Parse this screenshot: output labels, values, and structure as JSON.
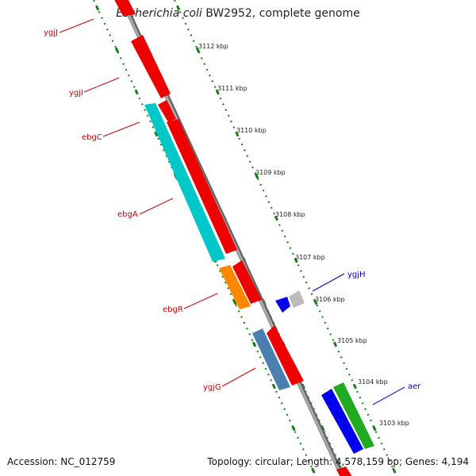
{
  "title": {
    "organism": "Escherichia coli",
    "strain_rest": "BW2952, complete genome"
  },
  "footer": {
    "accession": "Accession: NC_012759",
    "topology": "Topology: circular; Length: 4,578,159 bp; Genes: 4,194"
  },
  "scale": {
    "ticks": [
      "3112 kbp",
      "3111 kbp",
      "3110 kbp",
      "3109 kbp",
      "3108 kbp",
      "3107 kbp",
      "3106 kbp",
      "3105 kbp",
      "3104 kbp",
      "3103 kbp"
    ]
  },
  "genes": [
    {
      "name": "ygjJ",
      "strand": "forward",
      "color": "#ff0000",
      "label_color": "#cc0000"
    },
    {
      "name": "ygjI",
      "strand": "forward",
      "color": "#ff0000",
      "label_color": "#cc0000"
    },
    {
      "name": "ebgC",
      "strand": "forward",
      "color": "#ff0000",
      "label_color": "#cc0000"
    },
    {
      "name": "ebgA",
      "strand": "forward",
      "color": "#00cccc",
      "label_color": "#cc0000"
    },
    {
      "name": "ebgR",
      "strand": "forward",
      "color": "#ff8c00",
      "label_color": "#cc0000"
    },
    {
      "name": "ygjG",
      "strand": "forward",
      "color": "#4682b4",
      "label_color": "#cc0000"
    },
    {
      "name": "ygjH",
      "strand": "reverse",
      "color": "#0000ff",
      "label_color": "#0000cc"
    },
    {
      "name": "aer",
      "strand": "reverse",
      "color": "#0000ff",
      "label_color": "#0000cc"
    }
  ],
  "colors": {
    "backbone": "#888888",
    "tick_green": "#1a7a1a",
    "tick_dots": "#1a8a1a",
    "forward_red": "#ff0000",
    "reverse_blue": "#0000ff",
    "green_feature": "#33aa33",
    "grey_feature": "#bbbbbb"
  }
}
